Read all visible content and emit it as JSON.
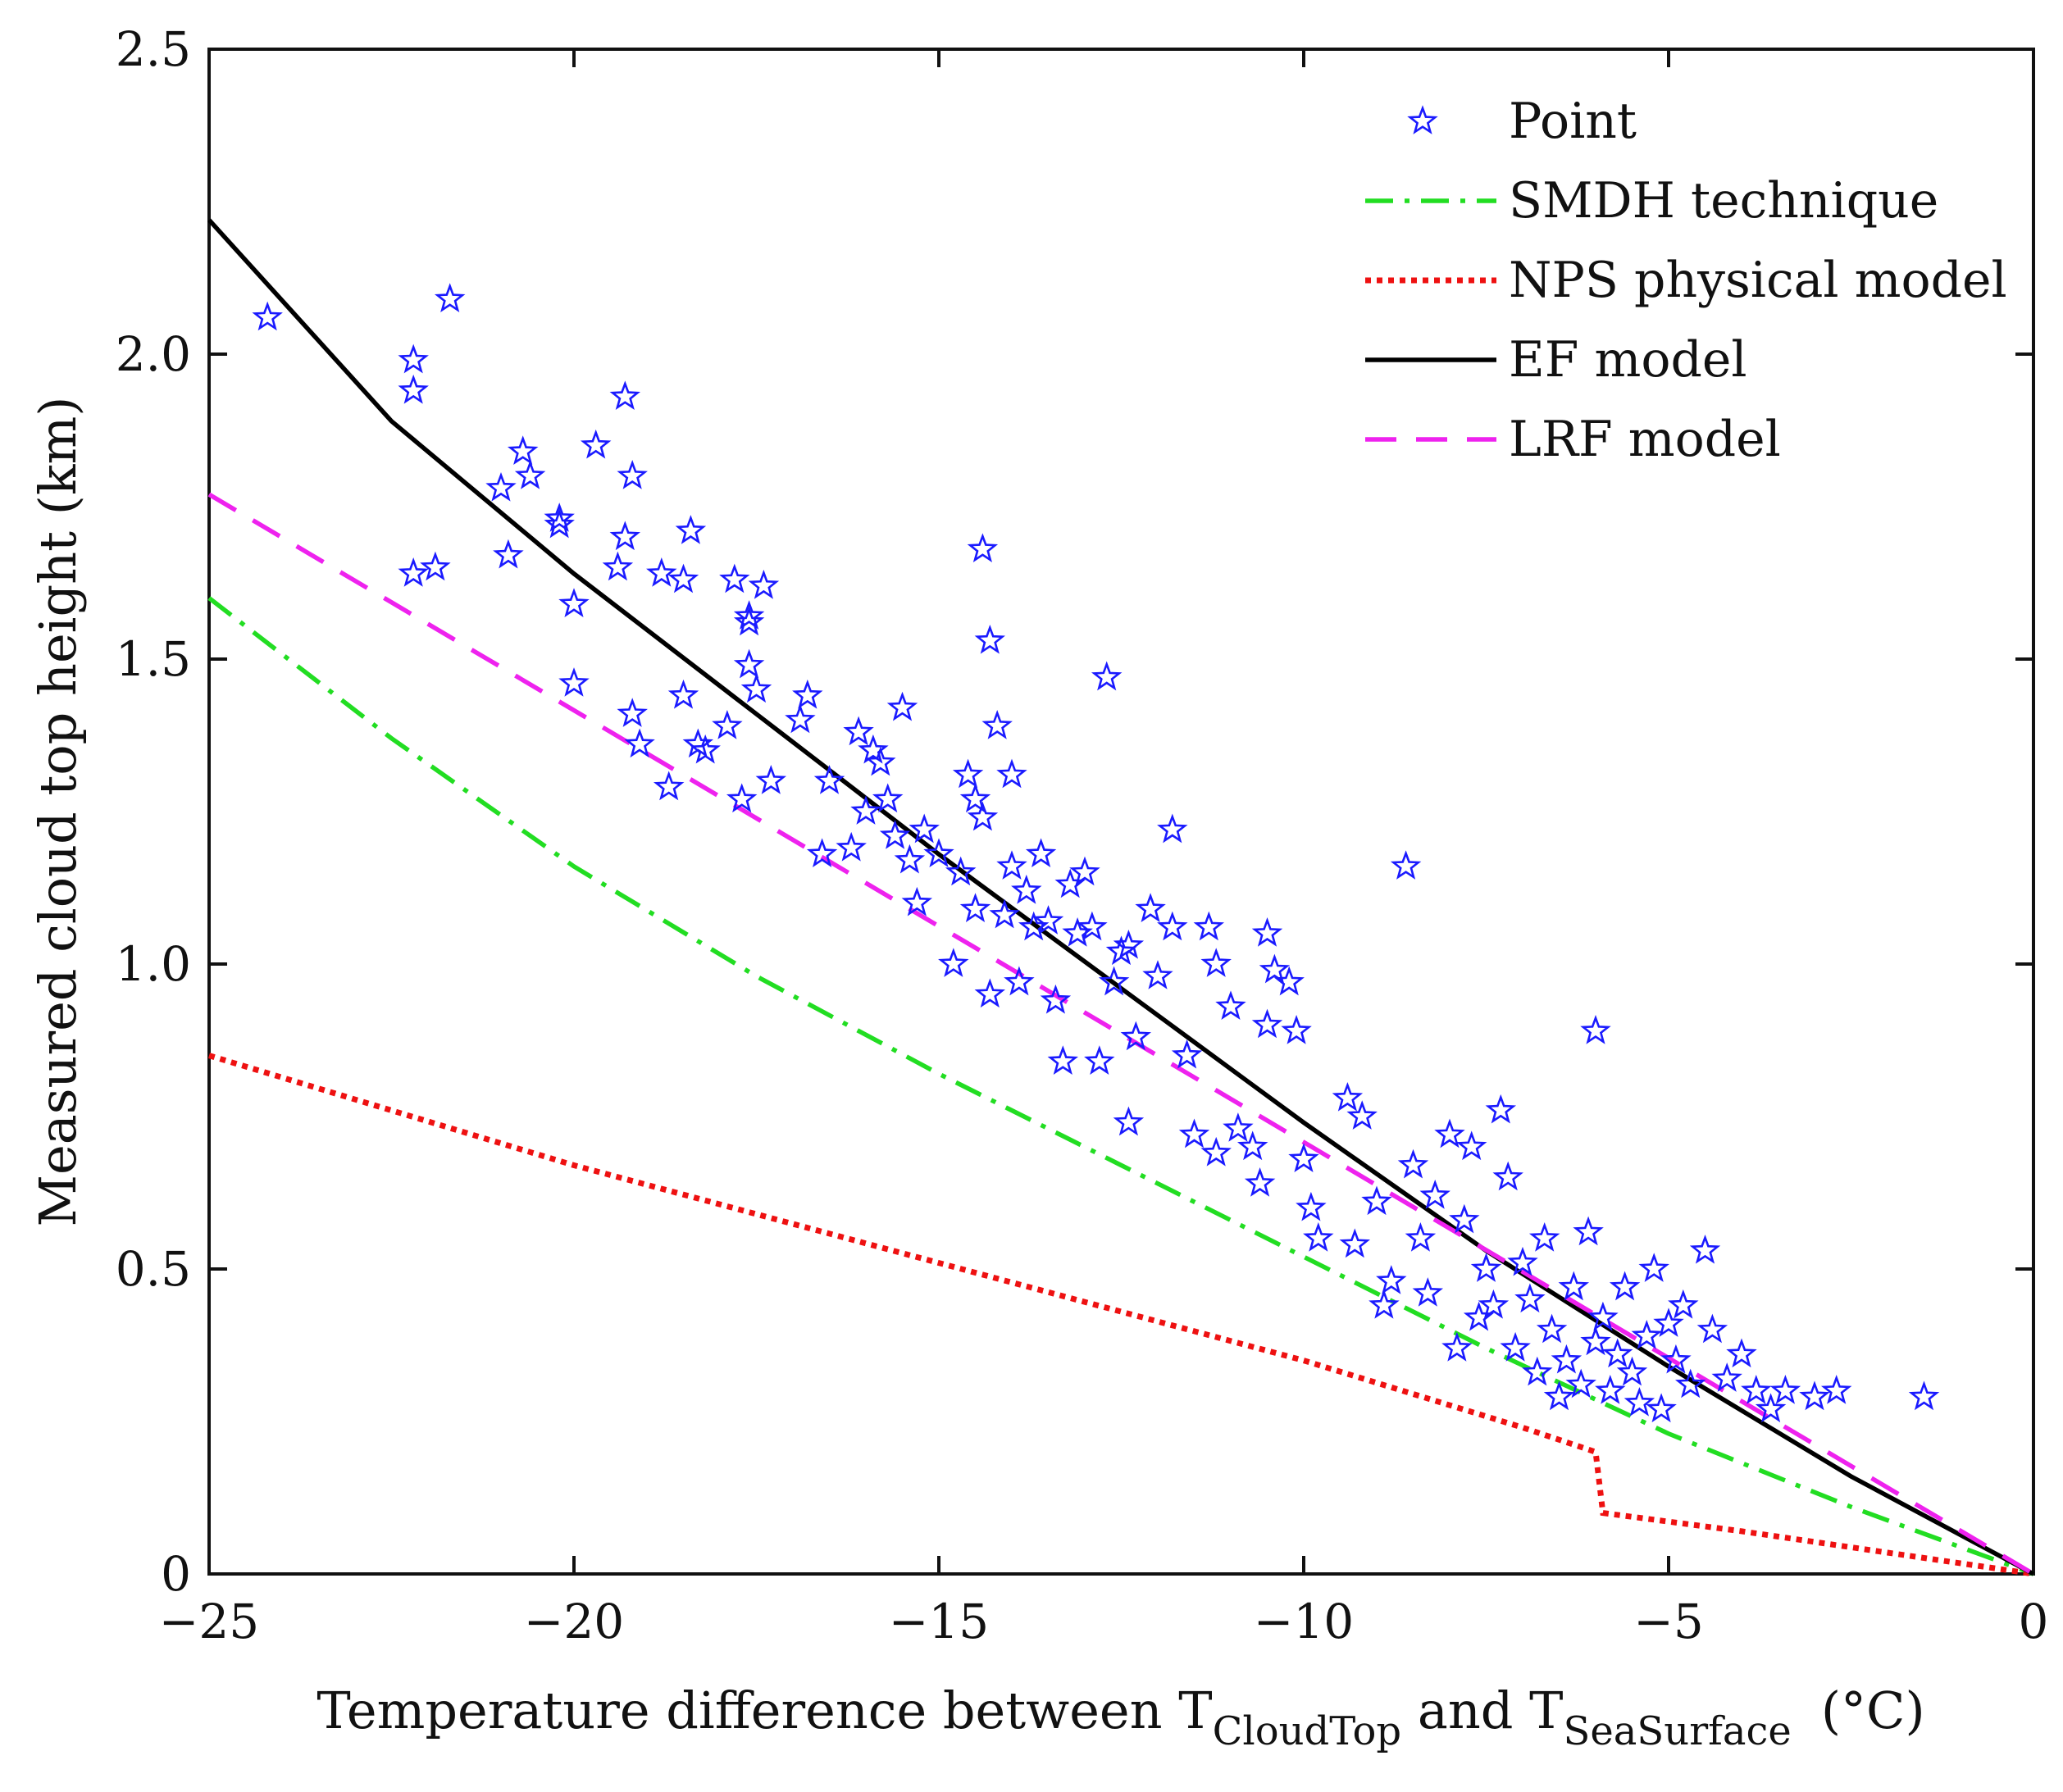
{
  "chart_data": {
    "type": "scatter",
    "title": "",
    "xlabel": {
      "prefix": "Temperature difference between T",
      "sub1": "CloudTop",
      "middle": " and T",
      "sub2": "SeaSurface",
      "suffix": "(°C)"
    },
    "ylabel": "Measured cloud top height (km)",
    "xlim": [
      -25,
      0
    ],
    "ylim": [
      0,
      2.5
    ],
    "xticks": [
      -25,
      -20,
      -15,
      -10,
      -5,
      0
    ],
    "xtick_labels": [
      "−25",
      "−20",
      "−15",
      "−10",
      "−5",
      "0"
    ],
    "yticks": [
      0,
      0.5,
      1.0,
      1.5,
      2.0,
      2.5
    ],
    "ytick_labels": [
      "0",
      "0.5",
      "1.0",
      "1.5",
      "2.0",
      "2.5"
    ],
    "legend_position": "top-right",
    "series": [
      {
        "name": "Point",
        "kind": "scatter",
        "marker": "star",
        "color": "#1a1aff",
        "points": [
          [
            -24.2,
            2.06
          ],
          [
            -22.2,
            1.99
          ],
          [
            -22.2,
            1.94
          ],
          [
            -21.7,
            2.09
          ],
          [
            -22.2,
            1.64
          ],
          [
            -21.9,
            1.65
          ],
          [
            -21.0,
            1.78
          ],
          [
            -20.9,
            1.67
          ],
          [
            -20.7,
            1.84
          ],
          [
            -20.6,
            1.8
          ],
          [
            -20.2,
            1.73
          ],
          [
            -20.2,
            1.72
          ],
          [
            -20.0,
            1.59
          ],
          [
            -20.0,
            1.46
          ],
          [
            -19.7,
            1.85
          ],
          [
            -19.4,
            1.65
          ],
          [
            -19.3,
            1.93
          ],
          [
            -19.3,
            1.7
          ],
          [
            -19.2,
            1.8
          ],
          [
            -19.2,
            1.41
          ],
          [
            -19.1,
            1.36
          ],
          [
            -18.8,
            1.64
          ],
          [
            -18.7,
            1.29
          ],
          [
            -18.5,
            1.44
          ],
          [
            -18.5,
            1.63
          ],
          [
            -18.4,
            1.71
          ],
          [
            -18.3,
            1.36
          ],
          [
            -18.2,
            1.35
          ],
          [
            -17.9,
            1.39
          ],
          [
            -17.8,
            1.63
          ],
          [
            -17.7,
            1.27
          ],
          [
            -17.6,
            1.56
          ],
          [
            -17.6,
            1.57
          ],
          [
            -17.6,
            1.49
          ],
          [
            -17.5,
            1.45
          ],
          [
            -17.4,
            1.62
          ],
          [
            -17.3,
            1.3
          ],
          [
            -16.9,
            1.4
          ],
          [
            -16.8,
            1.44
          ],
          [
            -16.6,
            1.18
          ],
          [
            -16.5,
            1.3
          ],
          [
            -16.2,
            1.19
          ],
          [
            -16.1,
            1.38
          ],
          [
            -16.0,
            1.25
          ],
          [
            -15.9,
            1.35
          ],
          [
            -15.8,
            1.33
          ],
          [
            -15.7,
            1.27
          ],
          [
            -15.6,
            1.21
          ],
          [
            -15.5,
            1.42
          ],
          [
            -15.4,
            1.17
          ],
          [
            -15.3,
            1.1
          ],
          [
            -15.2,
            1.22
          ],
          [
            -15.0,
            1.18
          ],
          [
            -14.8,
            1.0
          ],
          [
            -14.7,
            1.15
          ],
          [
            -14.6,
            1.31
          ],
          [
            -14.5,
            1.27
          ],
          [
            -14.5,
            1.09
          ],
          [
            -14.4,
            1.24
          ],
          [
            -14.4,
            1.68
          ],
          [
            -14.3,
            1.53
          ],
          [
            -14.3,
            0.95
          ],
          [
            -14.2,
            1.39
          ],
          [
            -14.1,
            1.08
          ],
          [
            -14.0,
            1.31
          ],
          [
            -14.0,
            1.16
          ],
          [
            -13.9,
            0.97
          ],
          [
            -13.8,
            1.12
          ],
          [
            -13.7,
            1.06
          ],
          [
            -13.6,
            1.18
          ],
          [
            -13.5,
            1.07
          ],
          [
            -13.4,
            0.94
          ],
          [
            -13.3,
            0.84
          ],
          [
            -13.2,
            1.13
          ],
          [
            -13.1,
            1.05
          ],
          [
            -13.0,
            1.15
          ],
          [
            -12.9,
            1.06
          ],
          [
            -12.8,
            0.84
          ],
          [
            -12.7,
            1.47
          ],
          [
            -12.6,
            0.97
          ],
          [
            -12.5,
            1.02
          ],
          [
            -12.4,
            1.03
          ],
          [
            -12.4,
            0.74
          ],
          [
            -12.3,
            0.88
          ],
          [
            -12.1,
            1.09
          ],
          [
            -12.0,
            0.98
          ],
          [
            -11.8,
            1.22
          ],
          [
            -11.8,
            1.06
          ],
          [
            -11.6,
            0.85
          ],
          [
            -11.5,
            0.72
          ],
          [
            -11.3,
            1.06
          ],
          [
            -11.2,
            1.0
          ],
          [
            -11.2,
            0.69
          ],
          [
            -11.0,
            0.93
          ],
          [
            -10.9,
            0.73
          ],
          [
            -10.7,
            0.7
          ],
          [
            -10.6,
            0.64
          ],
          [
            -10.5,
            0.9
          ],
          [
            -10.5,
            1.05
          ],
          [
            -10.4,
            0.99
          ],
          [
            -10.2,
            0.97
          ],
          [
            -10.1,
            0.89
          ],
          [
            -10.0,
            0.68
          ],
          [
            -9.9,
            0.6
          ],
          [
            -9.8,
            0.55
          ],
          [
            -9.4,
            0.78
          ],
          [
            -9.3,
            0.54
          ],
          [
            -9.2,
            0.75
          ],
          [
            -9.0,
            0.61
          ],
          [
            -8.9,
            0.44
          ],
          [
            -8.8,
            0.48
          ],
          [
            -8.6,
            1.16
          ],
          [
            -8.5,
            0.67
          ],
          [
            -8.4,
            0.55
          ],
          [
            -8.3,
            0.46
          ],
          [
            -8.2,
            0.62
          ],
          [
            -8.0,
            0.72
          ],
          [
            -7.9,
            0.37
          ],
          [
            -7.8,
            0.58
          ],
          [
            -7.7,
            0.7
          ],
          [
            -7.6,
            0.42
          ],
          [
            -7.5,
            0.5
          ],
          [
            -7.4,
            0.44
          ],
          [
            -7.3,
            0.76
          ],
          [
            -7.2,
            0.65
          ],
          [
            -7.1,
            0.37
          ],
          [
            -7.0,
            0.51
          ],
          [
            -6.9,
            0.45
          ],
          [
            -6.8,
            0.33
          ],
          [
            -6.7,
            0.55
          ],
          [
            -6.6,
            0.4
          ],
          [
            -6.5,
            0.29
          ],
          [
            -6.4,
            0.35
          ],
          [
            -6.3,
            0.47
          ],
          [
            -6.2,
            0.31
          ],
          [
            -6.1,
            0.56
          ],
          [
            -6.0,
            0.89
          ],
          [
            -6.0,
            0.38
          ],
          [
            -5.9,
            0.42
          ],
          [
            -5.8,
            0.3
          ],
          [
            -5.7,
            0.36
          ],
          [
            -5.6,
            0.47
          ],
          [
            -5.5,
            0.33
          ],
          [
            -5.4,
            0.28
          ],
          [
            -5.3,
            0.39
          ],
          [
            -5.2,
            0.5
          ],
          [
            -5.1,
            0.27
          ],
          [
            -5.0,
            0.41
          ],
          [
            -4.9,
            0.35
          ],
          [
            -4.8,
            0.44
          ],
          [
            -4.7,
            0.31
          ],
          [
            -4.5,
            0.53
          ],
          [
            -4.4,
            0.4
          ],
          [
            -4.2,
            0.32
          ],
          [
            -4.0,
            0.36
          ],
          [
            -3.8,
            0.3
          ],
          [
            -3.6,
            0.27
          ],
          [
            -3.4,
            0.3
          ],
          [
            -3.0,
            0.29
          ],
          [
            -2.7,
            0.3
          ],
          [
            -1.5,
            0.29
          ]
        ]
      },
      {
        "name": "SMDH technique",
        "kind": "line",
        "style": "dashdot",
        "color": "#22dd22",
        "x": [
          -25,
          -22.5,
          -20,
          -17.5,
          -15,
          -12.5,
          -10,
          -7.5,
          -5,
          -2.5,
          0
        ],
        "y": [
          1.6,
          1.37,
          1.16,
          0.98,
          0.82,
          0.67,
          0.52,
          0.37,
          0.23,
          0.11,
          0.0
        ]
      },
      {
        "name": "NPS physical model",
        "kind": "line",
        "style": "dotted",
        "color": "#ee1111",
        "x": [
          -25,
          -20,
          -15,
          -10,
          -7,
          -6.0,
          -5.9,
          -4,
          -2,
          0
        ],
        "y": [
          0.85,
          0.67,
          0.51,
          0.35,
          0.24,
          0.2,
          0.1,
          0.07,
          0.035,
          0.0
        ]
      },
      {
        "name": "EF model",
        "kind": "line",
        "style": "solid",
        "color": "#000000",
        "x": [
          -25,
          -22.5,
          -20,
          -17.5,
          -15,
          -12.5,
          -10,
          -7.5,
          -5,
          -2.5,
          0
        ],
        "y": [
          2.22,
          1.89,
          1.64,
          1.41,
          1.18,
          0.96,
          0.74,
          0.53,
          0.34,
          0.16,
          0.0
        ]
      },
      {
        "name": "LRF model",
        "kind": "line",
        "style": "dashed",
        "color": "#ee22ee",
        "x": [
          -25,
          0
        ],
        "y": [
          1.77,
          0.0
        ]
      }
    ]
  }
}
